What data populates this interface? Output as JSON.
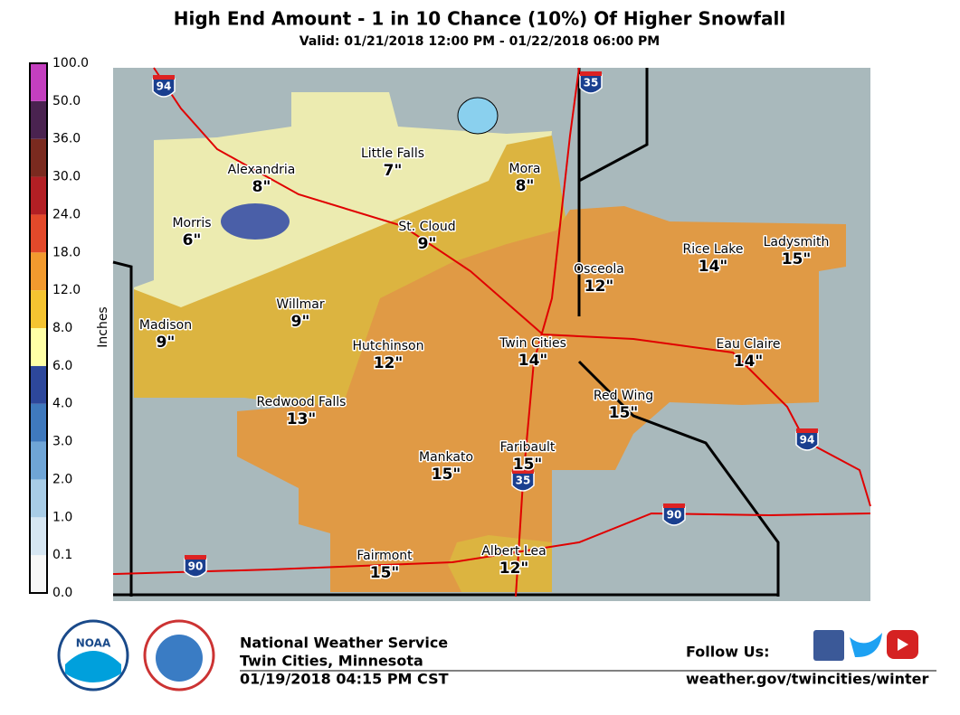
{
  "header": {
    "title": "High End Amount - 1 in 10 Chance (10%) Of Higher Snowfall",
    "subtitle": "Valid: 01/21/2018 12:00 PM - 01/22/2018 06:00 PM"
  },
  "legend": {
    "label": "Inches",
    "labels": [
      "0.0",
      "0.1",
      "1.0",
      "2.0",
      "3.0",
      "4.0",
      "6.0",
      "8.0",
      "12.0",
      "18.0",
      "24.0",
      "30.0",
      "36.0",
      "50.0",
      "100.0"
    ],
    "colors": [
      "#f7f7f7",
      "#d6e6f2",
      "#a8cce6",
      "#6fa5d6",
      "#3f79bd",
      "#2d479b",
      "#ffffa6",
      "#f5c431",
      "#f29a2e",
      "#e3492a",
      "#b21f24",
      "#7a2a1f",
      "#4a2350",
      "#c43fbf"
    ]
  },
  "cities": [
    {
      "name": "Alexandria",
      "amount": "8\""
    },
    {
      "name": "Little Falls",
      "amount": "7\""
    },
    {
      "name": "Mora",
      "amount": "8\""
    },
    {
      "name": "Morris",
      "amount": "6\""
    },
    {
      "name": "St. Cloud",
      "amount": "9\""
    },
    {
      "name": "Osceola",
      "amount": "12\""
    },
    {
      "name": "Rice Lake",
      "amount": "14\""
    },
    {
      "name": "Ladysmith",
      "amount": "15\""
    },
    {
      "name": "Willmar",
      "amount": "9\""
    },
    {
      "name": "Madison",
      "amount": "9\""
    },
    {
      "name": "Hutchinson",
      "amount": "12\""
    },
    {
      "name": "Twin Cities",
      "amount": "14\""
    },
    {
      "name": "Eau Claire",
      "amount": "14\""
    },
    {
      "name": "Red Wing",
      "amount": "15\""
    },
    {
      "name": "Redwood Falls",
      "amount": "13\""
    },
    {
      "name": "Faribault",
      "amount": "15\""
    },
    {
      "name": "Mankato",
      "amount": "15\""
    },
    {
      "name": "Fairmont",
      "amount": "15\""
    },
    {
      "name": "Albert Lea",
      "amount": "12\""
    }
  ],
  "highways": [
    "94",
    "35",
    "94",
    "35",
    "90",
    "90"
  ],
  "footer": {
    "logo": "NOAA",
    "agency": "National Weather Service",
    "office": "Twin Cities, Minnesota",
    "issued": "01/19/2018 04:15 PM CST",
    "follow": "Follow Us:",
    "url": "weather.gov/twincities/winter"
  }
}
